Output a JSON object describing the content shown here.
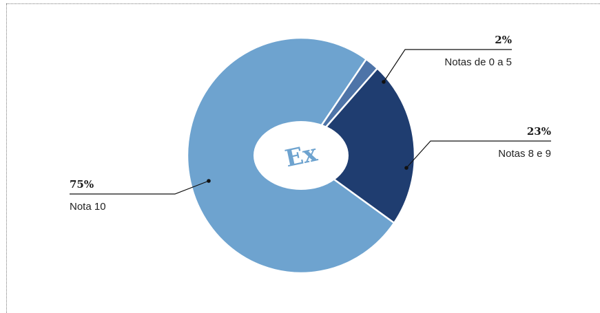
{
  "chart_data": {
    "type": "pie",
    "variant": "donut",
    "title": "",
    "slices": [
      {
        "label": "Notas de 0 a 5",
        "value": 2,
        "value_label": "2%",
        "color": "#4e74a8"
      },
      {
        "label": "Notas 8 e 9",
        "value": 23,
        "value_label": "23%",
        "color": "#1f3d70"
      },
      {
        "label": "Nota 10",
        "value": 75,
        "value_label": "75%",
        "color": "#6ea3cf"
      }
    ],
    "center_text": "Ex",
    "center_text_color": "#6ea3cf",
    "start_angle_deg": 35,
    "direction": "clockwise"
  }
}
